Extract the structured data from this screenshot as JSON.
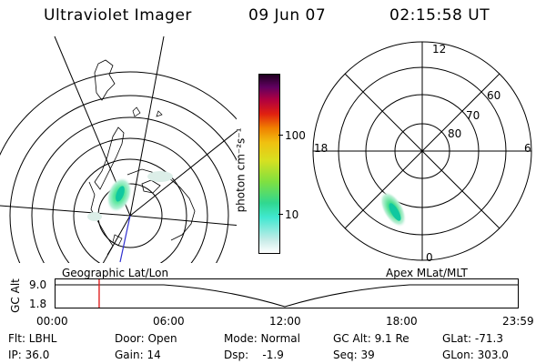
{
  "header": {
    "instrument": "Ultraviolet Imager",
    "date": "09 Jun 07",
    "time": "02:15:58 UT"
  },
  "colorbar": {
    "unit_label": "photon cm⁻²s⁻¹",
    "ticks": [
      "100",
      "10"
    ]
  },
  "apex_plot": {
    "mlt_labels": [
      "12",
      "18",
      "6",
      "0"
    ],
    "mlat_labels": [
      "60",
      "70",
      "80"
    ]
  },
  "geo_plot": {
    "label": "Geographic Lat/Lon"
  },
  "apex_caption": "Apex MLat/MLT",
  "timeline": {
    "ylabel": "GC Alt",
    "y_ticks": [
      "9.0",
      "1.8"
    ],
    "x_ticks": [
      "00:00",
      "06:00",
      "12:00",
      "18:00",
      "23:59"
    ],
    "current_time_fraction": 0.0944,
    "cursor_color": "#e02020"
  },
  "info": {
    "filter": "Flt: LBHL",
    "ip": "IP: 36.0",
    "door": "Door: Open",
    "gain": "Gain: 14",
    "mode": "Mode: Normal",
    "dsp": "Dsp:    -1.9",
    "gc_alt": "GC Alt: 9.1 Re",
    "seq": "Seq: 39",
    "glat": "GLat: -71.3",
    "glon": "GLon: 303.0"
  }
}
